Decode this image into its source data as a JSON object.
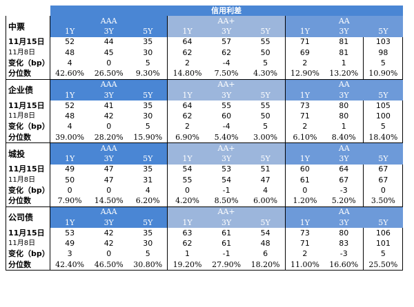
{
  "title": "信用利差",
  "groups": [
    {
      "name": "AAA",
      "terms": [
        "1Y",
        "3Y",
        "5Y"
      ]
    },
    {
      "name": "AA+",
      "terms": [
        "1Y",
        "3Y",
        "5Y"
      ]
    },
    {
      "name": "AA",
      "terms": [
        "1Y",
        "3Y",
        "5Y"
      ]
    }
  ],
  "sections": [
    {
      "name": "中票",
      "rows": [
        {
          "label": "11月15日",
          "values": [
            "52",
            "44",
            "35",
            "64",
            "57",
            "55",
            "71",
            "81",
            "103"
          ]
        },
        {
          "label": "11月8日",
          "values": [
            "48",
            "45",
            "30",
            "62",
            "62",
            "50",
            "69",
            "81",
            "98"
          ]
        },
        {
          "label": "变化（bp）",
          "values": [
            "4",
            "0",
            "5",
            "2",
            "-4",
            "5",
            "2",
            "1",
            "5"
          ]
        },
        {
          "label": "分位数",
          "values": [
            "42.60%",
            "26.50%",
            "9.30%",
            "14.80%",
            "7.50%",
            "4.30%",
            "12.90%",
            "13.20%",
            "10.90%"
          ]
        }
      ]
    },
    {
      "name": "企业债",
      "rows": [
        {
          "label": "11月15日",
          "values": [
            "52",
            "41",
            "35",
            "64",
            "55",
            "55",
            "73",
            "80",
            "105"
          ]
        },
        {
          "label": "11月8日",
          "values": [
            "48",
            "42",
            "30",
            "62",
            "60",
            "50",
            "71",
            "80",
            "100"
          ]
        },
        {
          "label": "变化（bp）",
          "values": [
            "4",
            "0",
            "5",
            "2",
            "-4",
            "5",
            "2",
            "1",
            "5"
          ]
        },
        {
          "label": "分位数",
          "values": [
            "39.00%",
            "28.20%",
            "15.90%",
            "6.90%",
            "5.40%",
            "3.00%",
            "6.10%",
            "8.40%",
            "18.40%"
          ]
        }
      ]
    },
    {
      "name": "城投",
      "rows": [
        {
          "label": "11月15日",
          "values": [
            "49",
            "47",
            "35",
            "54",
            "53",
            "51",
            "60",
            "64",
            "67"
          ]
        },
        {
          "label": "11月8日",
          "values": [
            "50",
            "47",
            "31",
            "55",
            "54",
            "47",
            "61",
            "67",
            "67"
          ]
        },
        {
          "label": "变化（bp）",
          "values": [
            "0",
            "0",
            "4",
            "0",
            "-1",
            "4",
            "0",
            "-3",
            "0"
          ]
        },
        {
          "label": "分位数",
          "values": [
            "7.90%",
            "14.50%",
            "6.20%",
            "4.20%",
            "8.50%",
            "6.00%",
            "1.20%",
            "5.20%",
            "3.50%"
          ]
        }
      ]
    },
    {
      "name": "公司债",
      "rows": [
        {
          "label": "11月15日",
          "values": [
            "53",
            "42",
            "35",
            "63",
            "61",
            "54",
            "73",
            "80",
            "106"
          ]
        },
        {
          "label": "11月8日",
          "values": [
            "49",
            "42",
            "30",
            "62",
            "61",
            "48",
            "71",
            "83",
            "101"
          ]
        },
        {
          "label": "变化（bp）",
          "values": [
            "3",
            "0",
            "5",
            "1",
            "-1",
            "6",
            "2",
            "-3",
            "5"
          ]
        },
        {
          "label": "分位数",
          "values": [
            "42.40%",
            "46.50%",
            "30.80%",
            "19.20%",
            "27.90%",
            "18.20%",
            "11.00%",
            "16.60%",
            "25.50%"
          ]
        }
      ]
    }
  ],
  "colors": {
    "aaa": "#4a86d4",
    "aa_plus": "#9cb6dc",
    "aa": "#6d9ad9",
    "title_bg": "#4a86d4"
  }
}
